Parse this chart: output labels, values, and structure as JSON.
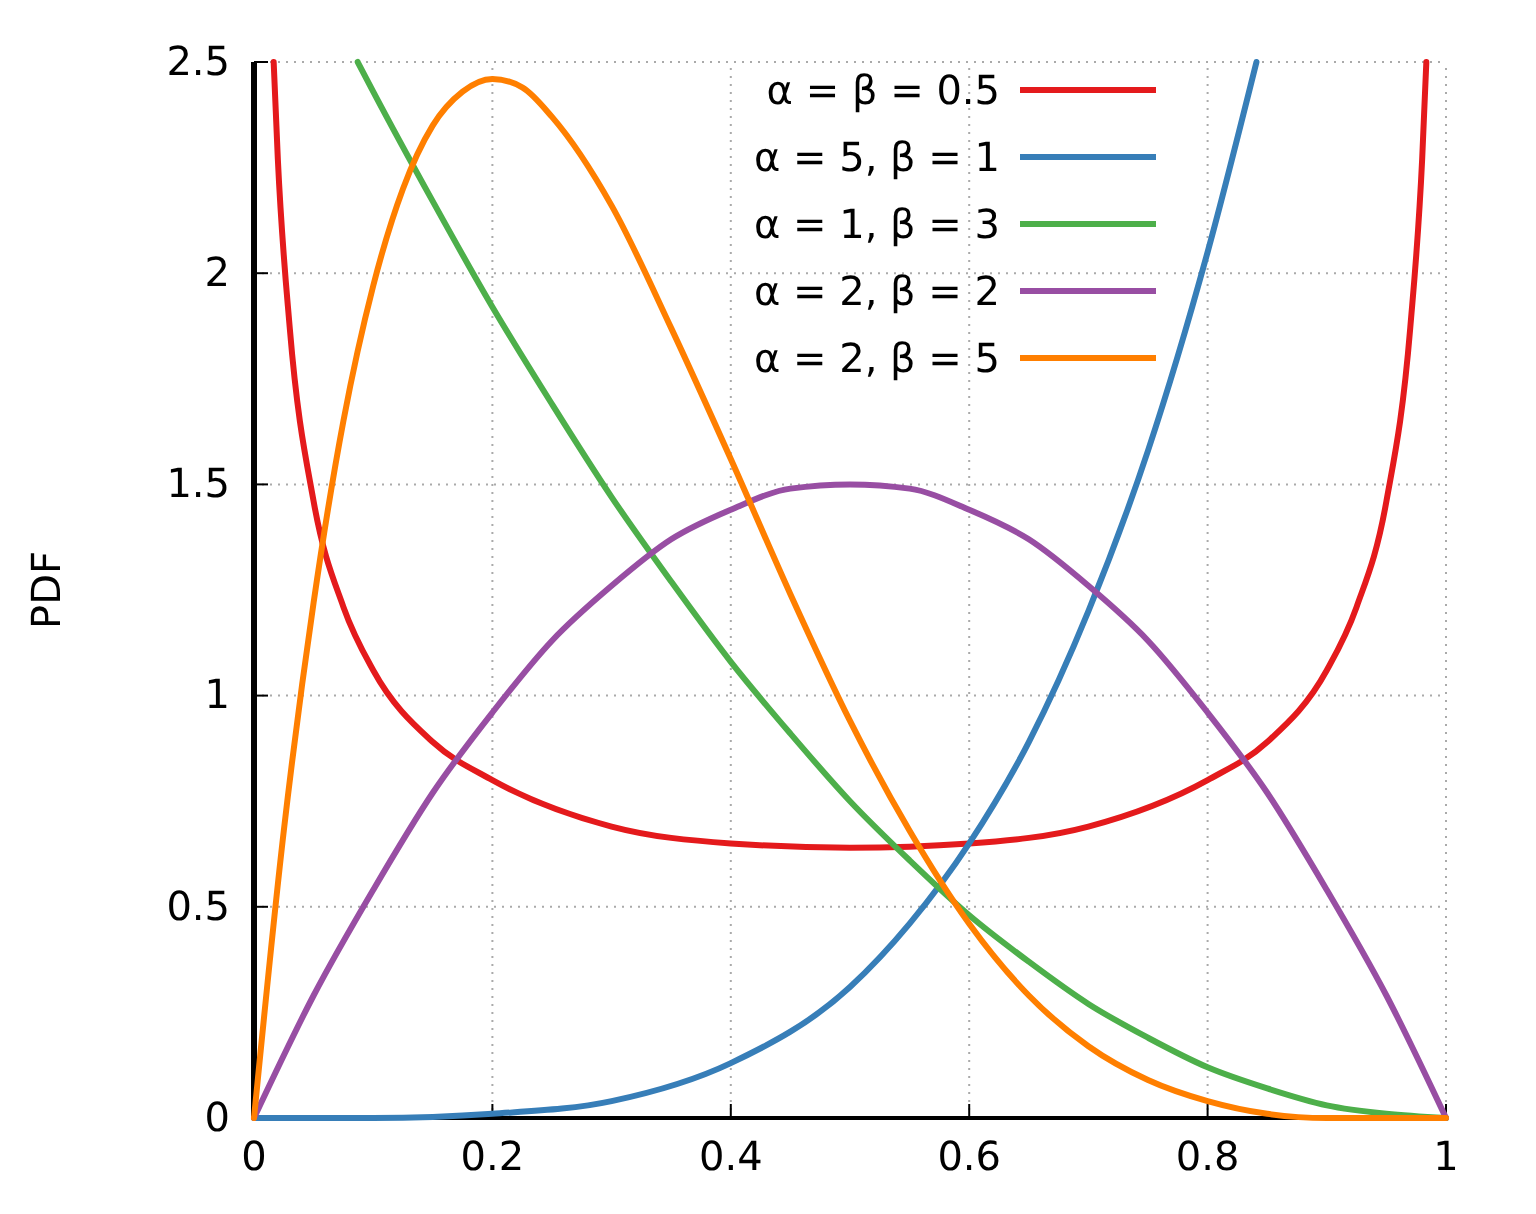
{
  "chart_data": {
    "type": "line",
    "ylabel": "PDF",
    "xlim": [
      0,
      1
    ],
    "ylim": [
      0,
      2.5
    ],
    "xticks": [
      0,
      0.2,
      0.4,
      0.6,
      0.8,
      1
    ],
    "yticks": [
      0,
      0.5,
      1,
      1.5,
      2,
      2.5
    ],
    "grid": true,
    "legend": "top right",
    "marker": "none",
    "line_style": "solid",
    "series": [
      {
        "name": "α = β = 0.5",
        "color": "#e41a1c",
        "x": [
          0.0165,
          0.02,
          0.03,
          0.05,
          0.075,
          0.1,
          0.15,
          0.2,
          0.3,
          0.4,
          0.5,
          0.6,
          0.7,
          0.8,
          0.85,
          0.9,
          0.925,
          0.95,
          0.97,
          0.98,
          0.9835
        ],
        "values": [
          2.5,
          2.27,
          1.87,
          1.46,
          1.21,
          1.06,
          0.89,
          0.8,
          0.69,
          0.65,
          0.64,
          0.65,
          0.69,
          0.8,
          0.89,
          1.06,
          1.21,
          1.46,
          1.87,
          2.27,
          2.5
        ]
      },
      {
        "name": "α = 5, β = 1",
        "color": "#377eb8",
        "x": [
          0,
          0.1,
          0.2,
          0.3,
          0.4,
          0.5,
          0.55,
          0.6,
          0.65,
          0.7,
          0.75,
          0.8,
          0.841
        ],
        "values": [
          0,
          0,
          0.01,
          0.04,
          0.13,
          0.31,
          0.46,
          0.65,
          0.89,
          1.2,
          1.58,
          2.05,
          2.5
        ]
      },
      {
        "name": "α = 1, β = 3",
        "color": "#4daf4a",
        "x": [
          0.087,
          0.1,
          0.15,
          0.2,
          0.25,
          0.3,
          0.35,
          0.4,
          0.45,
          0.5,
          0.55,
          0.6,
          0.65,
          0.7,
          0.75,
          0.8,
          0.85,
          0.9,
          0.95,
          1
        ],
        "values": [
          2.5,
          2.43,
          2.17,
          1.92,
          1.69,
          1.47,
          1.27,
          1.08,
          0.91,
          0.75,
          0.61,
          0.48,
          0.37,
          0.27,
          0.19,
          0.12,
          0.07,
          0.03,
          0.01,
          0
        ]
      },
      {
        "name": "α = 2, β = 2",
        "color": "#984ea3",
        "x": [
          0,
          0.05,
          0.1,
          0.15,
          0.2,
          0.25,
          0.3,
          0.35,
          0.4,
          0.45,
          0.5,
          0.55,
          0.6,
          0.65,
          0.7,
          0.75,
          0.8,
          0.85,
          0.9,
          0.95,
          1
        ],
        "values": [
          0,
          0.29,
          0.54,
          0.77,
          0.96,
          1.13,
          1.26,
          1.37,
          1.44,
          1.49,
          1.5,
          1.49,
          1.44,
          1.37,
          1.26,
          1.13,
          0.96,
          0.77,
          0.54,
          0.29,
          0
        ]
      },
      {
        "name": "α = 2, β = 5",
        "color": "#ff7f00",
        "x": [
          0,
          0.025,
          0.05,
          0.075,
          0.1,
          0.125,
          0.15,
          0.175,
          0.2,
          0.225,
          0.25,
          0.3,
          0.35,
          0.4,
          0.45,
          0.5,
          0.55,
          0.6,
          0.65,
          0.7,
          0.75,
          0.8,
          0.85,
          0.9,
          1
        ],
        "values": [
          0,
          0.68,
          1.22,
          1.65,
          1.97,
          2.2,
          2.35,
          2.43,
          2.46,
          2.44,
          2.37,
          2.16,
          1.87,
          1.56,
          1.24,
          0.94,
          0.68,
          0.46,
          0.29,
          0.17,
          0.09,
          0.04,
          0.01,
          0,
          0
        ]
      }
    ]
  }
}
